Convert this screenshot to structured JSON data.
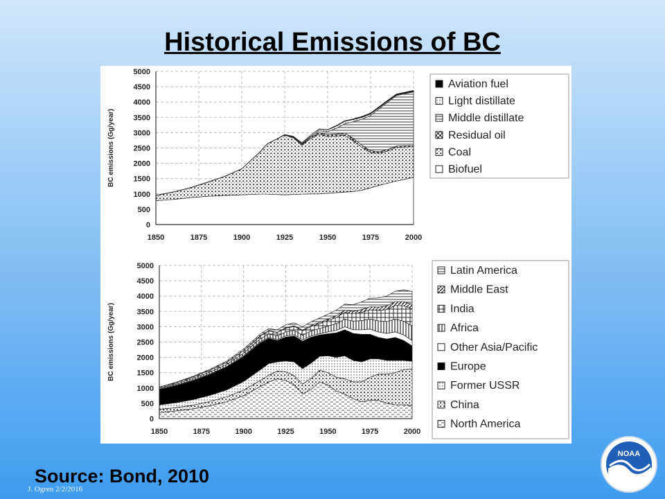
{
  "slide": {
    "title": "Historical Emissions of BC",
    "source": "Source:  Bond, 2010",
    "footer": "J. Ogren  2/2/2016",
    "logo_text": "NOAA"
  },
  "colors": {
    "background_top": "#cfe6fb",
    "background_bottom": "#3f9cf0",
    "logo_blue": "#1f5fb8"
  },
  "chart_data": [
    {
      "type": "area",
      "stacked": true,
      "title": "",
      "xlabel": "",
      "ylabel": "BC emissions (Gg/year)",
      "xlim": [
        1850,
        2000
      ],
      "ylim": [
        0,
        5000
      ],
      "xticks": [
        1850,
        1875,
        1900,
        1925,
        1950,
        1975,
        2000
      ],
      "yticks": [
        0,
        500,
        1000,
        1500,
        2000,
        2500,
        3000,
        3500,
        4000,
        4500,
        5000
      ],
      "legend_position": "right",
      "grid": true,
      "x": [
        1850,
        1860,
        1870,
        1880,
        1890,
        1900,
        1910,
        1915,
        1920,
        1925,
        1930,
        1935,
        1940,
        1945,
        1950,
        1955,
        1960,
        1965,
        1970,
        1975,
        1980,
        1985,
        1990,
        1995,
        2000
      ],
      "series": [
        {
          "name": "Biofuel",
          "values": [
            780,
            820,
            880,
            920,
            950,
            970,
            990,
            990,
            980,
            970,
            980,
            990,
            1000,
            1000,
            1020,
            1040,
            1060,
            1080,
            1120,
            1200,
            1280,
            1350,
            1420,
            1480,
            1540
          ]
        },
        {
          "name": "Coal",
          "values": [
            170,
            240,
            320,
            460,
            620,
            850,
            1350,
            1650,
            1800,
            1950,
            1850,
            1600,
            1800,
            1950,
            1850,
            1850,
            1850,
            1650,
            1400,
            1150,
            1050,
            1050,
            1100,
            1050,
            1000
          ]
        },
        {
          "name": "Residual oil",
          "values": [
            0,
            0,
            0,
            0,
            0,
            0,
            0,
            0,
            0,
            10,
            20,
            30,
            40,
            50,
            60,
            70,
            80,
            80,
            70,
            60,
            50,
            50,
            40,
            40,
            40
          ]
        },
        {
          "name": "Middle distillate",
          "values": [
            0,
            0,
            0,
            0,
            0,
            0,
            0,
            0,
            0,
            0,
            10,
            20,
            30,
            60,
            100,
            180,
            300,
            550,
            850,
            1150,
            1400,
            1550,
            1650,
            1700,
            1750
          ]
        },
        {
          "name": "Light distillate",
          "values": [
            0,
            0,
            0,
            0,
            0,
            0,
            0,
            0,
            0,
            10,
            20,
            30,
            40,
            50,
            60,
            70,
            80,
            70,
            60,
            50,
            40,
            30,
            20,
            20,
            20
          ]
        },
        {
          "name": "Aviation fuel",
          "values": [
            0,
            0,
            0,
            0,
            0,
            0,
            0,
            0,
            0,
            0,
            0,
            0,
            0,
            10,
            10,
            20,
            20,
            20,
            30,
            30,
            30,
            30,
            30,
            30,
            30
          ]
        }
      ]
    },
    {
      "type": "area",
      "stacked": true,
      "title": "",
      "xlabel": "",
      "ylabel": "BC emissions (Gg/year)",
      "xlim": [
        1850,
        2000
      ],
      "ylim": [
        0,
        5000
      ],
      "xticks": [
        1850,
        1875,
        1900,
        1925,
        1950,
        1975,
        2000
      ],
      "yticks": [
        0,
        500,
        1000,
        1500,
        2000,
        2500,
        3000,
        3500,
        4000,
        4500,
        5000
      ],
      "legend_position": "right",
      "grid": true,
      "x": [
        1850,
        1860,
        1870,
        1880,
        1890,
        1900,
        1910,
        1915,
        1920,
        1925,
        1930,
        1935,
        1940,
        1945,
        1950,
        1955,
        1960,
        1965,
        1970,
        1975,
        1980,
        1985,
        1990,
        1995,
        2000
      ],
      "series": [
        {
          "name": "North America",
          "values": [
            200,
            250,
            320,
            420,
            550,
            750,
            1050,
            1200,
            1300,
            1250,
            1100,
            800,
            950,
            1200,
            1100,
            900,
            800,
            650,
            550,
            600,
            600,
            500,
            450,
            450,
            420
          ]
        },
        {
          "name": "China",
          "values": [
            100,
            110,
            120,
            140,
            160,
            180,
            200,
            220,
            250,
            280,
            300,
            330,
            360,
            380,
            400,
            450,
            500,
            550,
            650,
            750,
            850,
            950,
            1050,
            1150,
            1200
          ]
        },
        {
          "name": "Former USSR",
          "values": [
            150,
            160,
            180,
            200,
            230,
            280,
            350,
            380,
            300,
            350,
            450,
            500,
            500,
            450,
            550,
            650,
            750,
            700,
            650,
            600,
            500,
            450,
            400,
            300,
            250
          ]
        },
        {
          "name": "Europe",
          "values": [
            500,
            560,
            620,
            680,
            740,
            820,
            880,
            820,
            700,
            780,
            850,
            900,
            850,
            700,
            720,
            800,
            850,
            880,
            900,
            800,
            700,
            700,
            750,
            650,
            500
          ]
        },
        {
          "name": "Other Asia/Pacific",
          "values": [
            20,
            20,
            20,
            20,
            20,
            30,
            30,
            30,
            30,
            40,
            40,
            40,
            40,
            40,
            60,
            80,
            100,
            120,
            150,
            170,
            180,
            180,
            180,
            180,
            180
          ]
        },
        {
          "name": "Africa",
          "values": [
            30,
            40,
            50,
            60,
            70,
            80,
            100,
            110,
            120,
            130,
            140,
            150,
            160,
            170,
            190,
            220,
            250,
            280,
            300,
            330,
            360,
            390,
            420,
            450,
            480
          ]
        },
        {
          "name": "India",
          "values": [
            30,
            40,
            50,
            60,
            70,
            80,
            90,
            100,
            110,
            120,
            130,
            140,
            150,
            160,
            180,
            200,
            220,
            240,
            270,
            300,
            340,
            390,
            440,
            500,
            550
          ]
        },
        {
          "name": "Middle East",
          "values": [
            0,
            0,
            0,
            0,
            0,
            0,
            10,
            10,
            10,
            20,
            20,
            30,
            30,
            40,
            50,
            60,
            70,
            80,
            90,
            100,
            110,
            120,
            130,
            140,
            150
          ]
        },
        {
          "name": "Latin America",
          "values": [
            0,
            10,
            20,
            30,
            40,
            50,
            60,
            70,
            80,
            90,
            100,
            110,
            120,
            140,
            160,
            180,
            200,
            220,
            250,
            280,
            300,
            320,
            340,
            380,
            420
          ]
        }
      ]
    }
  ]
}
